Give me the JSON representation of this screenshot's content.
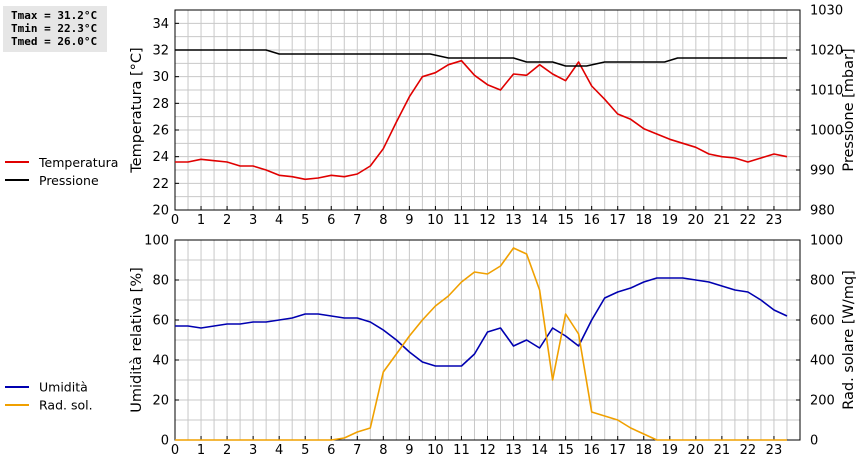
{
  "stats": {
    "tmax": "Tmax = 31.2°C",
    "tmin": "Tmin = 22.3°C",
    "tmed": "Tmed = 26.0°C"
  },
  "colors": {
    "temperature": "#e00000",
    "pressure": "#000000",
    "humidity": "#0000b0",
    "radiation": "#f0a000",
    "grid": "#c8c8c8"
  },
  "chart_data": [
    {
      "type": "line",
      "title": "",
      "xlabel": "",
      "xlim": [
        0,
        24
      ],
      "x_ticks": [
        "0",
        "1",
        "2",
        "3",
        "4",
        "5",
        "6",
        "7",
        "8",
        "9",
        "10",
        "11",
        "12",
        "13",
        "14",
        "15",
        "16",
        "17",
        "18",
        "19",
        "20",
        "21",
        "22",
        "23"
      ],
      "ylabel": "Temperatura [°C]",
      "ylim": [
        20,
        35
      ],
      "y_ticks": [
        "20",
        "22",
        "24",
        "26",
        "28",
        "30",
        "32",
        "34"
      ],
      "y2label": "Pressione [mbar]",
      "y2lim": [
        980,
        1030
      ],
      "y2_ticks": [
        "980",
        "990",
        "1000",
        "1010",
        "1020",
        "1030"
      ],
      "grid": true,
      "series": [
        {
          "name": "Temperatura",
          "axis": "left",
          "x": [
            0,
            0.5,
            1,
            1.5,
            2,
            2.5,
            3,
            3.5,
            4,
            4.5,
            5,
            5.5,
            6,
            6.5,
            7,
            7.5,
            8,
            8.5,
            9,
            9.5,
            10,
            10.5,
            11,
            11.5,
            12,
            12.5,
            13,
            13.5,
            14,
            14.5,
            15,
            15.5,
            16,
            16.5,
            17,
            17.5,
            18,
            18.5,
            19,
            19.5,
            20,
            20.5,
            21,
            21.5,
            22,
            22.5,
            23,
            23.5
          ],
          "values": [
            23.6,
            23.6,
            23.8,
            23.7,
            23.6,
            23.3,
            23.3,
            23.0,
            22.6,
            22.5,
            22.3,
            22.4,
            22.6,
            22.5,
            22.7,
            23.3,
            24.6,
            26.6,
            28.5,
            30.0,
            30.3,
            30.9,
            31.2,
            30.1,
            29.4,
            29.0,
            30.2,
            30.1,
            30.9,
            30.2,
            29.7,
            31.1,
            29.3,
            28.3,
            27.2,
            26.8,
            26.1,
            25.7,
            25.3,
            25.0,
            24.7,
            24.2,
            24.0,
            23.9,
            23.6,
            23.9,
            24.2,
            24.0
          ]
        },
        {
          "name": "Pressione",
          "axis": "right",
          "x": [
            0,
            3.5,
            4,
            9.8,
            10.5,
            13,
            13.5,
            14.5,
            15,
            15.8,
            16.5,
            18.8,
            19.3,
            23.5
          ],
          "values": [
            1020,
            1020,
            1019,
            1019,
            1018,
            1018,
            1017,
            1017,
            1016,
            1016,
            1017,
            1017,
            1018,
            1018
          ]
        }
      ]
    },
    {
      "type": "line",
      "title": "",
      "xlabel": "",
      "xlim": [
        0,
        24
      ],
      "x_ticks": [
        "0",
        "1",
        "2",
        "3",
        "4",
        "5",
        "6",
        "7",
        "8",
        "9",
        "10",
        "11",
        "12",
        "13",
        "14",
        "15",
        "16",
        "17",
        "18",
        "19",
        "20",
        "21",
        "22",
        "23"
      ],
      "ylabel": "Umidità relativa [%]",
      "ylim": [
        0,
        100
      ],
      "y_ticks": [
        "0",
        "20",
        "40",
        "60",
        "80",
        "100"
      ],
      "y2label": "Rad. solare [W/mq]",
      "y2lim": [
        0,
        1000
      ],
      "y2_ticks": [
        "0",
        "200",
        "400",
        "600",
        "800",
        "1000"
      ],
      "grid": true,
      "series": [
        {
          "name": "Umidità",
          "axis": "left",
          "x": [
            0,
            0.5,
            1,
            1.5,
            2,
            2.5,
            3,
            3.5,
            4,
            4.5,
            5,
            5.5,
            6,
            6.5,
            7,
            7.5,
            8,
            8.5,
            9,
            9.5,
            10,
            10.5,
            11,
            11.5,
            12,
            12.5,
            13,
            13.5,
            14,
            14.5,
            15,
            15.5,
            16,
            16.5,
            17,
            17.5,
            18,
            18.5,
            19,
            19.5,
            20,
            20.5,
            21,
            21.5,
            22,
            22.5,
            23,
            23.5
          ],
          "values": [
            57,
            57,
            56,
            57,
            58,
            58,
            59,
            59,
            60,
            61,
            63,
            63,
            62,
            61,
            61,
            59,
            55,
            50,
            44,
            39,
            37,
            37,
            37,
            43,
            54,
            56,
            47,
            50,
            46,
            56,
            52,
            47,
            60,
            71,
            74,
            76,
            79,
            81,
            81,
            81,
            80,
            79,
            77,
            75,
            74,
            70,
            65,
            62
          ]
        },
        {
          "name": "Rad. sol.",
          "axis": "right",
          "x": [
            0,
            0.5,
            1,
            1.5,
            2,
            2.5,
            3,
            3.5,
            4,
            4.5,
            5,
            5.5,
            6,
            6.5,
            7,
            7.5,
            8,
            8.5,
            9,
            9.5,
            10,
            10.5,
            11,
            11.5,
            12,
            12.5,
            13,
            13.5,
            14,
            14.5,
            15,
            15.5,
            16,
            16.5,
            17,
            17.5,
            18,
            18.5,
            19,
            19.5,
            20,
            20.5,
            21,
            21.5,
            22,
            22.5,
            23,
            23.5
          ],
          "values": [
            0,
            0,
            0,
            0,
            0,
            0,
            0,
            0,
            0,
            0,
            0,
            0,
            0,
            10,
            40,
            60,
            340,
            430,
            520,
            600,
            670,
            720,
            790,
            840,
            830,
            870,
            960,
            930,
            750,
            300,
            630,
            530,
            140,
            120,
            100,
            60,
            30,
            0,
            0,
            0,
            0,
            0,
            0,
            0,
            0,
            0,
            0,
            0
          ]
        }
      ]
    }
  ]
}
